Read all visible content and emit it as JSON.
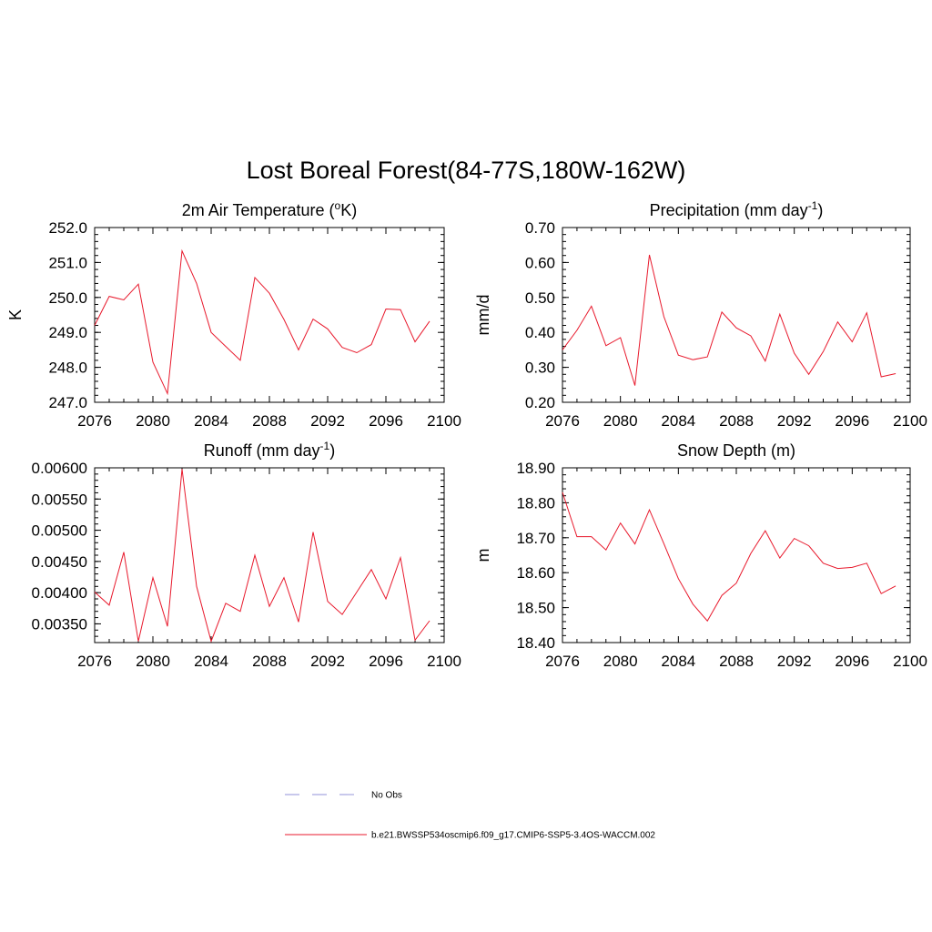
{
  "title": "Lost Boreal Forest(84-77S,180W-162W)",
  "colors": {
    "series": "#e8192c",
    "obs": "#a8a8e0",
    "axis": "#000000"
  },
  "legend": {
    "obs_label": "No Obs",
    "model_label": "b.e21.BWSSP534oscmip6.f09_g17.CMIP6-SSP5-3.4OS-WACCM.002"
  },
  "chart_data": [
    {
      "type": "line",
      "title": {
        "main": "2m Air Temperature (",
        "sup": "o",
        "after": "K)"
      },
      "ylabel": "K",
      "xlabel": "",
      "xlim": [
        2076,
        2100
      ],
      "ylim": [
        247.0,
        252.0
      ],
      "xticks": [
        2076,
        2080,
        2084,
        2088,
        2092,
        2096,
        2100
      ],
      "yticks": [
        "247.0",
        "248.0",
        "249.0",
        "250.0",
        "251.0",
        "252.0"
      ],
      "x": [
        2076,
        2077,
        2078,
        2079,
        2080,
        2081,
        2082,
        2083,
        2084,
        2085,
        2086,
        2087,
        2088,
        2089,
        2090,
        2091,
        2092,
        2093,
        2094,
        2095,
        2096,
        2097,
        2098,
        2099
      ],
      "series": [
        {
          "values": [
            249.2,
            250.03,
            249.93,
            250.38,
            248.15,
            247.25,
            251.33,
            250.4,
            249.0,
            248.6,
            248.2,
            250.57,
            250.12,
            249.37,
            248.5,
            249.38,
            249.1,
            248.57,
            248.42,
            248.65,
            249.67,
            249.65,
            248.73,
            249.32
          ]
        }
      ]
    },
    {
      "type": "line",
      "title": {
        "main": "Precipitation (mm day",
        "sup": "-1",
        "after": ")"
      },
      "ylabel": "mm/d",
      "xlabel": "",
      "xlim": [
        2076,
        2100
      ],
      "ylim": [
        0.2,
        0.7
      ],
      "xticks": [
        2076,
        2080,
        2084,
        2088,
        2092,
        2096,
        2100
      ],
      "yticks": [
        "0.20",
        "0.30",
        "0.40",
        "0.50",
        "0.60",
        "0.70"
      ],
      "x": [
        2076,
        2077,
        2078,
        2079,
        2080,
        2081,
        2082,
        2083,
        2084,
        2085,
        2086,
        2087,
        2088,
        2089,
        2090,
        2091,
        2092,
        2093,
        2094,
        2095,
        2096,
        2097,
        2098,
        2099
      ],
      "series": [
        {
          "values": [
            0.35,
            0.406,
            0.475,
            0.362,
            0.385,
            0.248,
            0.622,
            0.445,
            0.335,
            0.322,
            0.33,
            0.458,
            0.413,
            0.39,
            0.318,
            0.452,
            0.34,
            0.28,
            0.345,
            0.43,
            0.373,
            0.456,
            0.273,
            0.282
          ]
        }
      ]
    },
    {
      "type": "line",
      "title": {
        "main": "Runoff (mm day",
        "sup": "-1",
        "after": ")"
      },
      "ylabel": "",
      "xlabel": "",
      "xlim": [
        2076,
        2100
      ],
      "ylim": [
        0.0032,
        0.006
      ],
      "xticks": [
        2076,
        2080,
        2084,
        2088,
        2092,
        2096,
        2100
      ],
      "yticks": [
        "0.00350",
        "0.00400",
        "0.00450",
        "0.00500",
        "0.00550",
        "0.00600"
      ],
      "x": [
        2076,
        2077,
        2078,
        2079,
        2080,
        2081,
        2082,
        2083,
        2084,
        2085,
        2086,
        2087,
        2088,
        2089,
        2090,
        2091,
        2092,
        2093,
        2094,
        2095,
        2096,
        2097,
        2098,
        2099
      ],
      "series": [
        {
          "values": [
            0.00401,
            0.0038,
            0.00465,
            0.00322,
            0.00424,
            0.00346,
            0.00598,
            0.0041,
            0.00322,
            0.00383,
            0.0037,
            0.0046,
            0.00378,
            0.00424,
            0.00353,
            0.00497,
            0.00386,
            0.00365,
            0.00401,
            0.00437,
            0.0039,
            0.00456,
            0.00324,
            0.00355
          ]
        }
      ]
    },
    {
      "type": "line",
      "title": {
        "main": "Snow Depth (m)",
        "sup": "",
        "after": ""
      },
      "ylabel": "m",
      "xlabel": "",
      "xlim": [
        2076,
        2100
      ],
      "ylim": [
        18.4,
        18.9
      ],
      "xticks": [
        2076,
        2080,
        2084,
        2088,
        2092,
        2096,
        2100
      ],
      "yticks": [
        "18.40",
        "18.50",
        "18.60",
        "18.70",
        "18.80",
        "18.90"
      ],
      "x": [
        2076,
        2077,
        2078,
        2079,
        2080,
        2081,
        2082,
        2083,
        2084,
        2085,
        2086,
        2087,
        2088,
        2089,
        2090,
        2091,
        2092,
        2093,
        2094,
        2095,
        2096,
        2097,
        2098,
        2099
      ],
      "series": [
        {
          "values": [
            18.83,
            18.703,
            18.703,
            18.665,
            18.742,
            18.682,
            18.78,
            18.683,
            18.583,
            18.51,
            18.462,
            18.535,
            18.57,
            18.655,
            18.72,
            18.642,
            18.698,
            18.677,
            18.627,
            18.612,
            18.615,
            18.627,
            18.54,
            18.562
          ]
        }
      ]
    }
  ]
}
